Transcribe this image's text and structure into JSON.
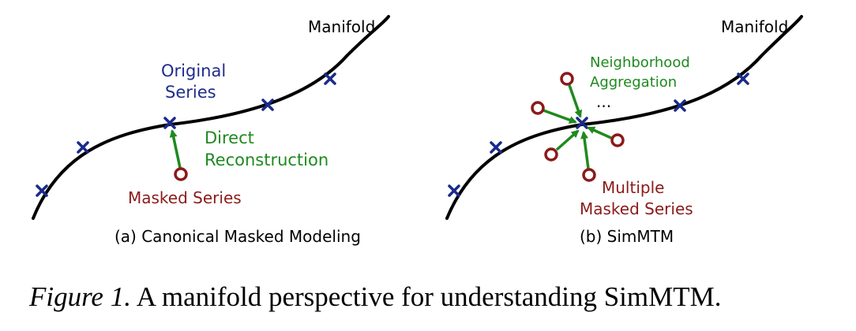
{
  "colors": {
    "curve": "#000000",
    "blue_text": "#1f2d8c",
    "blue_marker": "#1a2a8a",
    "green": "#1e8a1e",
    "red": "#8b1a1a",
    "black": "#000000"
  },
  "panel_a": {
    "manifold_label": "Manifold",
    "original_series_line1": "Original",
    "original_series_line2": "Series",
    "direct_line1": "Direct",
    "direct_line2": "Reconstruction",
    "masked_series": "Masked Series",
    "subcaption": "(a) Canonical Masked Modeling"
  },
  "panel_b": {
    "manifold_label": "Manifold",
    "neighborhood_line1": "Neighborhood",
    "neighborhood_line2": "Aggregation",
    "ellipsis": "...",
    "multiple_line1": "Multiple",
    "multiple_line2": "Masked Series",
    "subcaption": "(b) SimMTM"
  },
  "caption": {
    "label": "Figure 1.",
    "text": " A manifold perspective for understanding SimMTM."
  }
}
